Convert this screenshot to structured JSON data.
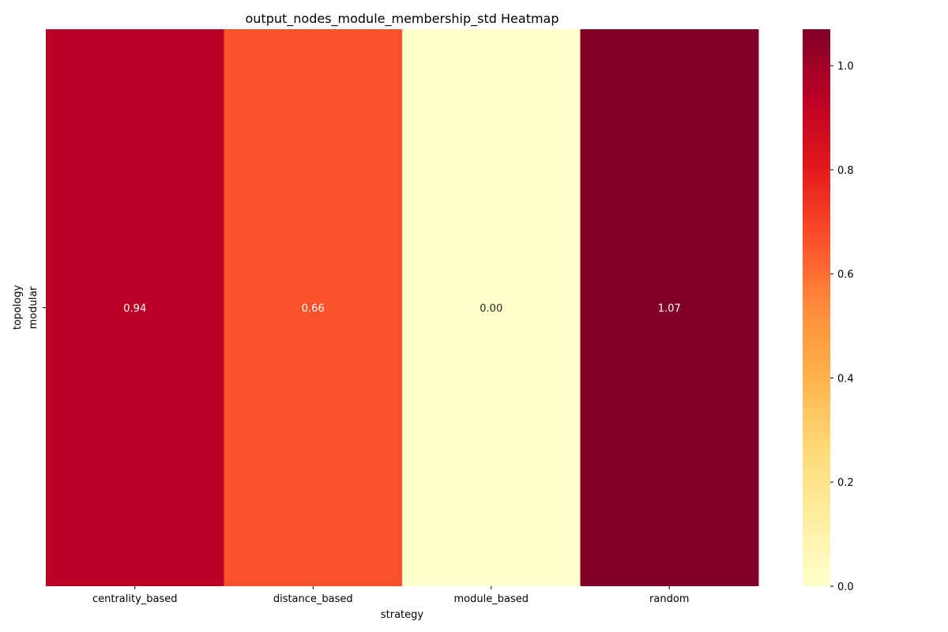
{
  "chart_data": {
    "type": "heatmap",
    "title": "output_nodes_module_membership_std Heatmap",
    "xlabel": "strategy",
    "ylabel": "topology",
    "x_categories": [
      "centrality_based",
      "distance_based",
      "module_based",
      "random"
    ],
    "y_categories": [
      "modular"
    ],
    "values": [
      [
        0.94,
        0.66,
        0.0,
        1.07
      ]
    ],
    "cell_labels": [
      [
        "0.94",
        "0.66",
        "0.00",
        "1.07"
      ]
    ],
    "colormap": "YlOrRd",
    "colorbar": {
      "range": [
        0.0,
        1.07
      ],
      "ticks": [
        0.0,
        0.2,
        0.4,
        0.6,
        0.8,
        1.0
      ],
      "tick_labels": [
        "0.0",
        "0.2",
        "0.4",
        "0.6",
        "0.8",
        "1.0"
      ]
    },
    "colors": {
      "centrality_based": "#bd0026",
      "distance_based": "#fc5429",
      "module_based": "#ffffcc",
      "random": "#800026"
    }
  }
}
